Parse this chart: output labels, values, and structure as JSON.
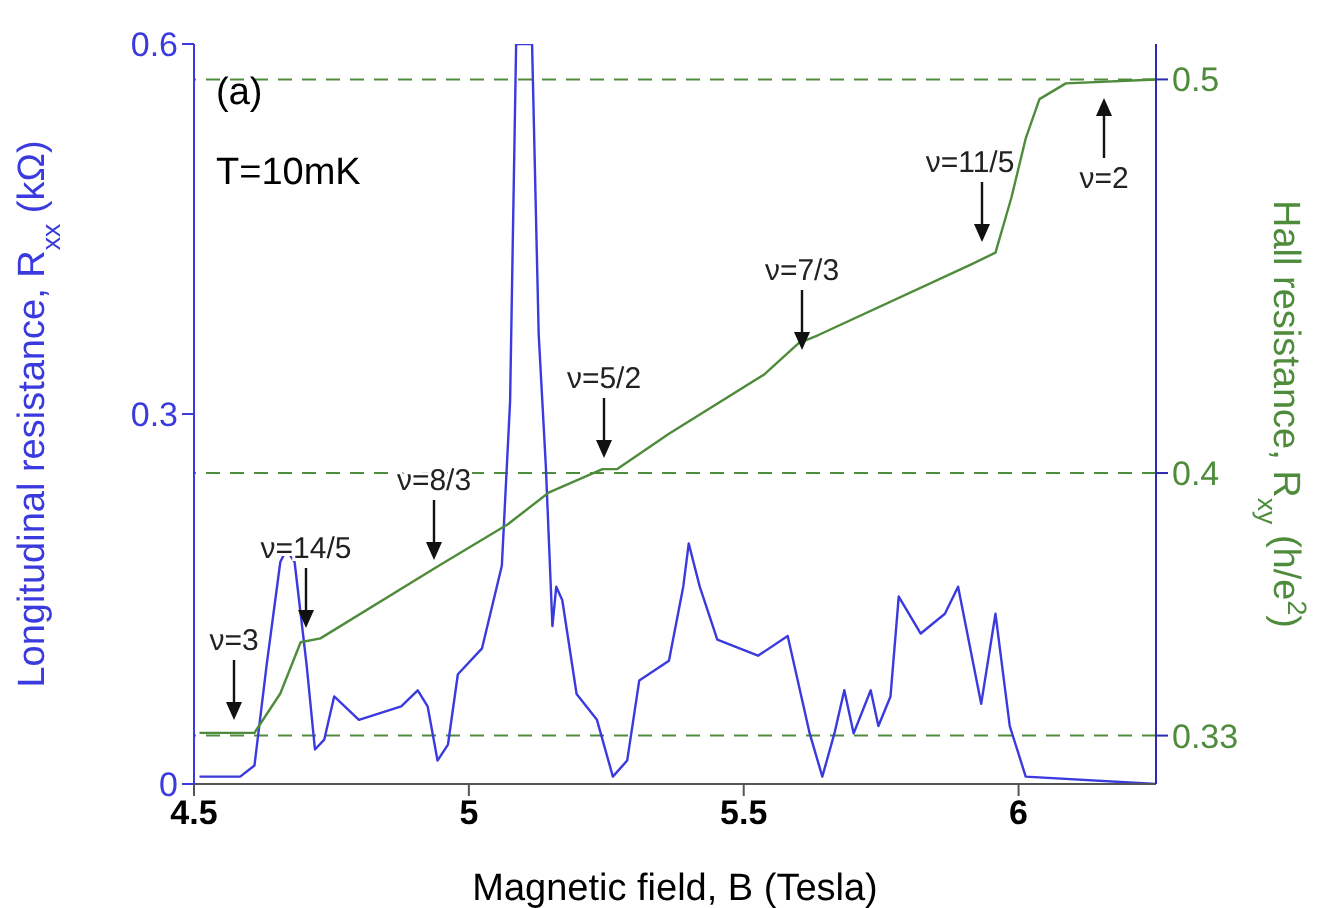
{
  "chart_data": {
    "type": "line",
    "xlabel": "Magnetic field, B (Tesla)",
    "ylabel": "Longitudinal resistance, R$_{xx}$ (kΩ)",
    "y2label": "Hall resistance, R$_{xy}$ (h/e$^{2}$)",
    "xlim": [
      4.5,
      6.25
    ],
    "xticks": [
      4.5,
      5,
      5.5,
      6
    ],
    "ylim": [
      0,
      0.6
    ],
    "yticks": [
      0,
      0.3,
      0.6
    ],
    "y2lim": [
      0.321,
      0.509
    ],
    "y2ticks": [
      {
        "value": 0.3333,
        "label": "0.33"
      },
      0.4,
      0.5
    ],
    "marker": "none",
    "line_style": "solid",
    "series": [
      {
        "color": "#3a3adf",
        "x": [
          4.51,
          4.584,
          4.61,
          4.632,
          4.657,
          4.668,
          4.683,
          4.705,
          4.72,
          4.737,
          4.755,
          4.8,
          4.877,
          4.907,
          4.925,
          4.943,
          4.962,
          4.98,
          5.024,
          5.06,
          5.075,
          5.086,
          5.115,
          5.127,
          5.14,
          5.152,
          5.159,
          5.17,
          5.196,
          5.233,
          5.262,
          5.288,
          5.31,
          5.364,
          5.39,
          5.4,
          5.42,
          5.452,
          5.526,
          5.58,
          5.62,
          5.643,
          5.665,
          5.683,
          5.7,
          5.731,
          5.745,
          5.767,
          5.782,
          5.822,
          5.866,
          5.89,
          5.932,
          5.958,
          5.984,
          6.013,
          6.25
        ],
        "values": [
          0.006,
          0.006,
          0.015,
          0.096,
          0.18,
          0.19,
          0.18,
          0.096,
          0.028,
          0.036,
          0.071,
          0.052,
          0.063,
          0.076,
          0.063,
          0.019,
          0.032,
          0.089,
          0.11,
          0.177,
          0.31,
          0.6,
          0.6,
          0.365,
          0.258,
          0.128,
          0.16,
          0.149,
          0.073,
          0.052,
          0.006,
          0.019,
          0.084,
          0.1,
          0.16,
          0.195,
          0.16,
          0.117,
          0.104,
          0.12,
          0.041,
          0.006,
          0.041,
          0.076,
          0.041,
          0.076,
          0.047,
          0.071,
          0.152,
          0.122,
          0.138,
          0.16,
          0.065,
          0.138,
          0.047,
          0.006,
          0.0
        ]
      },
      {
        "color": "#4e8c3c",
        "axis": "y2",
        "x": [
          4.51,
          4.61,
          4.657,
          4.694,
          4.73,
          4.94,
          5.071,
          5.145,
          5.243,
          5.27,
          5.364,
          5.537,
          5.6,
          5.635,
          5.914,
          5.958,
          5.987,
          6.013,
          6.038,
          6.086,
          6.25
        ],
        "values": [
          0.334,
          0.334,
          0.344,
          0.357,
          0.358,
          0.376,
          0.387,
          0.395,
          0.401,
          0.401,
          0.41,
          0.425,
          0.433,
          0.435,
          0.453,
          0.456,
          0.47,
          0.485,
          0.495,
          0.499,
          0.5
        ]
      }
    ],
    "ref_lines": [
      {
        "axis": "y2",
        "value": 0.5,
        "color": "#4e8c3c",
        "line_style": "dashed"
      },
      {
        "axis": "y2",
        "value": 0.4,
        "color": "#4e8c3c",
        "line_style": "dashed"
      },
      {
        "axis": "y2",
        "value": 0.3333,
        "color": "#4e8c3c",
        "line_style": "dashed"
      }
    ],
    "annotations": [
      "(a)",
      "T=10mK",
      "ν=3",
      "ν=14/5",
      "ν=8/3",
      "ν=5/2",
      "ν=7/3",
      "ν=11/5",
      "ν=2"
    ]
  }
}
